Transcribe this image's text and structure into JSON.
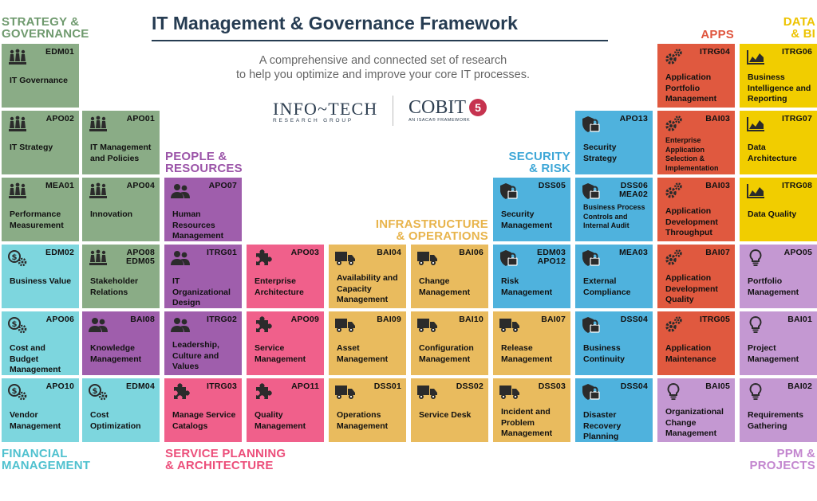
{
  "header": {
    "title": "IT Management & Governance Framework",
    "subtitle_line1": "A comprehensive and connected set of research",
    "subtitle_line2": "to help you optimize and improve your core IT processes."
  },
  "logos": {
    "infotech": "INFO~TECH",
    "infotech_sub": "RESEARCH GROUP",
    "cobit": "COBIT",
    "cobit_version": "5",
    "cobit_sub": "AN ISACA® FRAMEWORK"
  },
  "categories": {
    "strategy": {
      "line1": "STRATEGY &",
      "line2": "GOVERNANCE",
      "color": "#6f9a6e"
    },
    "financial": {
      "line1": "FINANCIAL",
      "line2": "MANAGEMENT",
      "color": "#4fc1cf"
    },
    "people": {
      "line1": "PEOPLE &",
      "line2": "RESOURCES",
      "color": "#9b54a8"
    },
    "service_planning": {
      "line1": "SERVICE PLANNING",
      "line2": "& ARCHITECTURE",
      "color": "#ec4e7a"
    },
    "infrastructure": {
      "line1": "INFRASTRUCTURE",
      "line2": "& OPERATIONS",
      "color": "#e8b44c"
    },
    "security": {
      "line1": "SECURITY",
      "line2": "& RISK",
      "color": "#3ea7d7"
    },
    "apps": {
      "line1": "APPS",
      "color": "#e0563f"
    },
    "data": {
      "line1": "DATA",
      "line2": "& BI",
      "color": "#edc300"
    },
    "ppm": {
      "line1": "PPM &",
      "line2": "PROJECTS",
      "color": "#c386cf"
    }
  },
  "colors": {
    "strategy": "#8aac86",
    "financial": "#7dd6de",
    "people": "#9f5eac",
    "service_planning": "#f0608b",
    "infrastructure": "#e9bb5e",
    "security": "#4fb2dd",
    "apps": "#e0593f",
    "data": "#f1cd00",
    "ppm": "#c498d2"
  },
  "tiles": [
    {
      "id": "t01",
      "cat": "strategy",
      "icon": "chess-pieces-icon",
      "code": "EDM01",
      "name": "IT Governance"
    },
    {
      "id": "t02",
      "cat": "strategy",
      "icon": "chess-pieces-icon",
      "code": "APO02",
      "name": "IT Strategy"
    },
    {
      "id": "t03",
      "cat": "strategy",
      "icon": "chess-pieces-icon",
      "code": "APO01",
      "name": "IT Management and Policies"
    },
    {
      "id": "t04",
      "cat": "strategy",
      "icon": "chess-pieces-icon",
      "code": "MEA01",
      "name": "Performance Measurement"
    },
    {
      "id": "t05",
      "cat": "strategy",
      "icon": "chess-pieces-icon",
      "code": "APO04",
      "name": "Innovation"
    },
    {
      "id": "t06",
      "cat": "financial",
      "icon": "money-gear-icon",
      "code": "EDM02",
      "name": "Business Value"
    },
    {
      "id": "t07",
      "cat": "strategy",
      "icon": "chess-pieces-icon",
      "code": "APO08 EDM05",
      "name": "Stakeholder Relations"
    },
    {
      "id": "t08",
      "cat": "financial",
      "icon": "money-gear-icon",
      "code": "APO06",
      "name": "Cost and Budget Management"
    },
    {
      "id": "t09",
      "cat": "people",
      "icon": "people-icon",
      "code": "BAI08",
      "name": "Knowledge Management"
    },
    {
      "id": "t10",
      "cat": "financial",
      "icon": "money-gear-icon",
      "code": "APO10",
      "name": "Vendor Management"
    },
    {
      "id": "t11",
      "cat": "financial",
      "icon": "money-gear-icon",
      "code": "EDM04",
      "name": "Cost Optimization"
    },
    {
      "id": "t12",
      "cat": "people",
      "icon": "people-icon",
      "code": "APO07",
      "name": "Human Resources Management"
    },
    {
      "id": "t13",
      "cat": "people",
      "icon": "people-icon",
      "code": "ITRG01",
      "name": "IT Organizational Design"
    },
    {
      "id": "t14",
      "cat": "people",
      "icon": "people-icon",
      "code": "ITRG02",
      "name": "Leadership, Culture and Values"
    },
    {
      "id": "t15",
      "cat": "service_planning",
      "icon": "puzzle-icon",
      "code": "ITRG03",
      "name": "Manage Service Catalogs"
    },
    {
      "id": "t16",
      "cat": "service_planning",
      "icon": "puzzle-icon",
      "code": "APO03",
      "name": "Enterprise Architecture"
    },
    {
      "id": "t17",
      "cat": "service_planning",
      "icon": "puzzle-icon",
      "code": "APO09",
      "name": "Service Management"
    },
    {
      "id": "t18",
      "cat": "service_planning",
      "icon": "puzzle-icon",
      "code": "APO11",
      "name": "Quality Management"
    },
    {
      "id": "t19",
      "cat": "infrastructure",
      "icon": "truck-icon",
      "code": "BAI04",
      "name": "Availability and Capacity Management"
    },
    {
      "id": "t20",
      "cat": "infrastructure",
      "icon": "truck-icon",
      "code": "BAI06",
      "name": "Change Management"
    },
    {
      "id": "t21",
      "cat": "infrastructure",
      "icon": "truck-icon",
      "code": "BAI09",
      "name": "Asset Management"
    },
    {
      "id": "t22",
      "cat": "infrastructure",
      "icon": "truck-icon",
      "code": "BAI10",
      "name": "Configuration Management"
    },
    {
      "id": "t23",
      "cat": "infrastructure",
      "icon": "truck-icon",
      "code": "DSS01",
      "name": "Operations Management"
    },
    {
      "id": "t24",
      "cat": "infrastructure",
      "icon": "truck-icon",
      "code": "DSS02",
      "name": "Service Desk"
    },
    {
      "id": "t25",
      "cat": "security",
      "icon": "shield-lock-icon",
      "code": "DSS05",
      "name": "Security Management"
    },
    {
      "id": "t26",
      "cat": "security",
      "icon": "shield-lock-icon",
      "code": "EDM03 APO12",
      "name": "Risk Management"
    },
    {
      "id": "t27",
      "cat": "infrastructure",
      "icon": "truck-icon",
      "code": "BAI07",
      "name": "Release Management"
    },
    {
      "id": "t28",
      "cat": "infrastructure",
      "icon": "truck-icon",
      "code": "DSS03",
      "name": "Incident and Problem Management"
    },
    {
      "id": "t29",
      "cat": "security",
      "icon": "shield-lock-icon",
      "code": "APO13",
      "name": "Security Strategy"
    },
    {
      "id": "t30",
      "cat": "security",
      "icon": "shield-lock-icon",
      "code": "DSS06 MEA02",
      "name": "Business Process Controls and Internal Audit"
    },
    {
      "id": "t31",
      "cat": "security",
      "icon": "shield-lock-icon",
      "code": "MEA03",
      "name": "External Compliance"
    },
    {
      "id": "t32",
      "cat": "security",
      "icon": "shield-lock-icon",
      "code": "DSS04",
      "name": "Business Continuity"
    },
    {
      "id": "t33",
      "cat": "security",
      "icon": "shield-lock-icon",
      "code": "DSS04",
      "name": "Disaster Recovery Planning"
    },
    {
      "id": "t34",
      "cat": "apps",
      "icon": "gears-icon",
      "code": "ITRG04",
      "name": "Application Portfolio Management"
    },
    {
      "id": "t35",
      "cat": "apps",
      "icon": "gears-icon",
      "code": "BAI03",
      "name": "Enterprise Application Selection & Implementation"
    },
    {
      "id": "t36",
      "cat": "apps",
      "icon": "gears-icon",
      "code": "BAI03",
      "name": "Application Development Throughput"
    },
    {
      "id": "t37",
      "cat": "apps",
      "icon": "gears-icon",
      "code": "BAI07",
      "name": "Application Development Quality"
    },
    {
      "id": "t38",
      "cat": "apps",
      "icon": "gears-icon",
      "code": "ITRG05",
      "name": "Application Maintenance"
    },
    {
      "id": "t39",
      "cat": "ppm",
      "icon": "lightbulb-icon",
      "code": "BAI05",
      "name": "Organizational Change Management"
    },
    {
      "id": "t40",
      "cat": "data",
      "icon": "area-chart-icon",
      "code": "ITRG06",
      "name": "Business Intelligence and Reporting"
    },
    {
      "id": "t41",
      "cat": "data",
      "icon": "area-chart-icon",
      "code": "ITRG07",
      "name": "Data Architecture"
    },
    {
      "id": "t42",
      "cat": "data",
      "icon": "area-chart-icon",
      "code": "ITRG08",
      "name": "Data Quality"
    },
    {
      "id": "t43",
      "cat": "ppm",
      "icon": "lightbulb-icon",
      "code": "APO05",
      "name": "Portfolio Management"
    },
    {
      "id": "t44",
      "cat": "ppm",
      "icon": "lightbulb-icon",
      "code": "BAI01",
      "name": "Project Management"
    },
    {
      "id": "t45",
      "cat": "ppm",
      "icon": "lightbulb-icon",
      "code": "BAI02",
      "name": "Requirements Gathering"
    }
  ]
}
